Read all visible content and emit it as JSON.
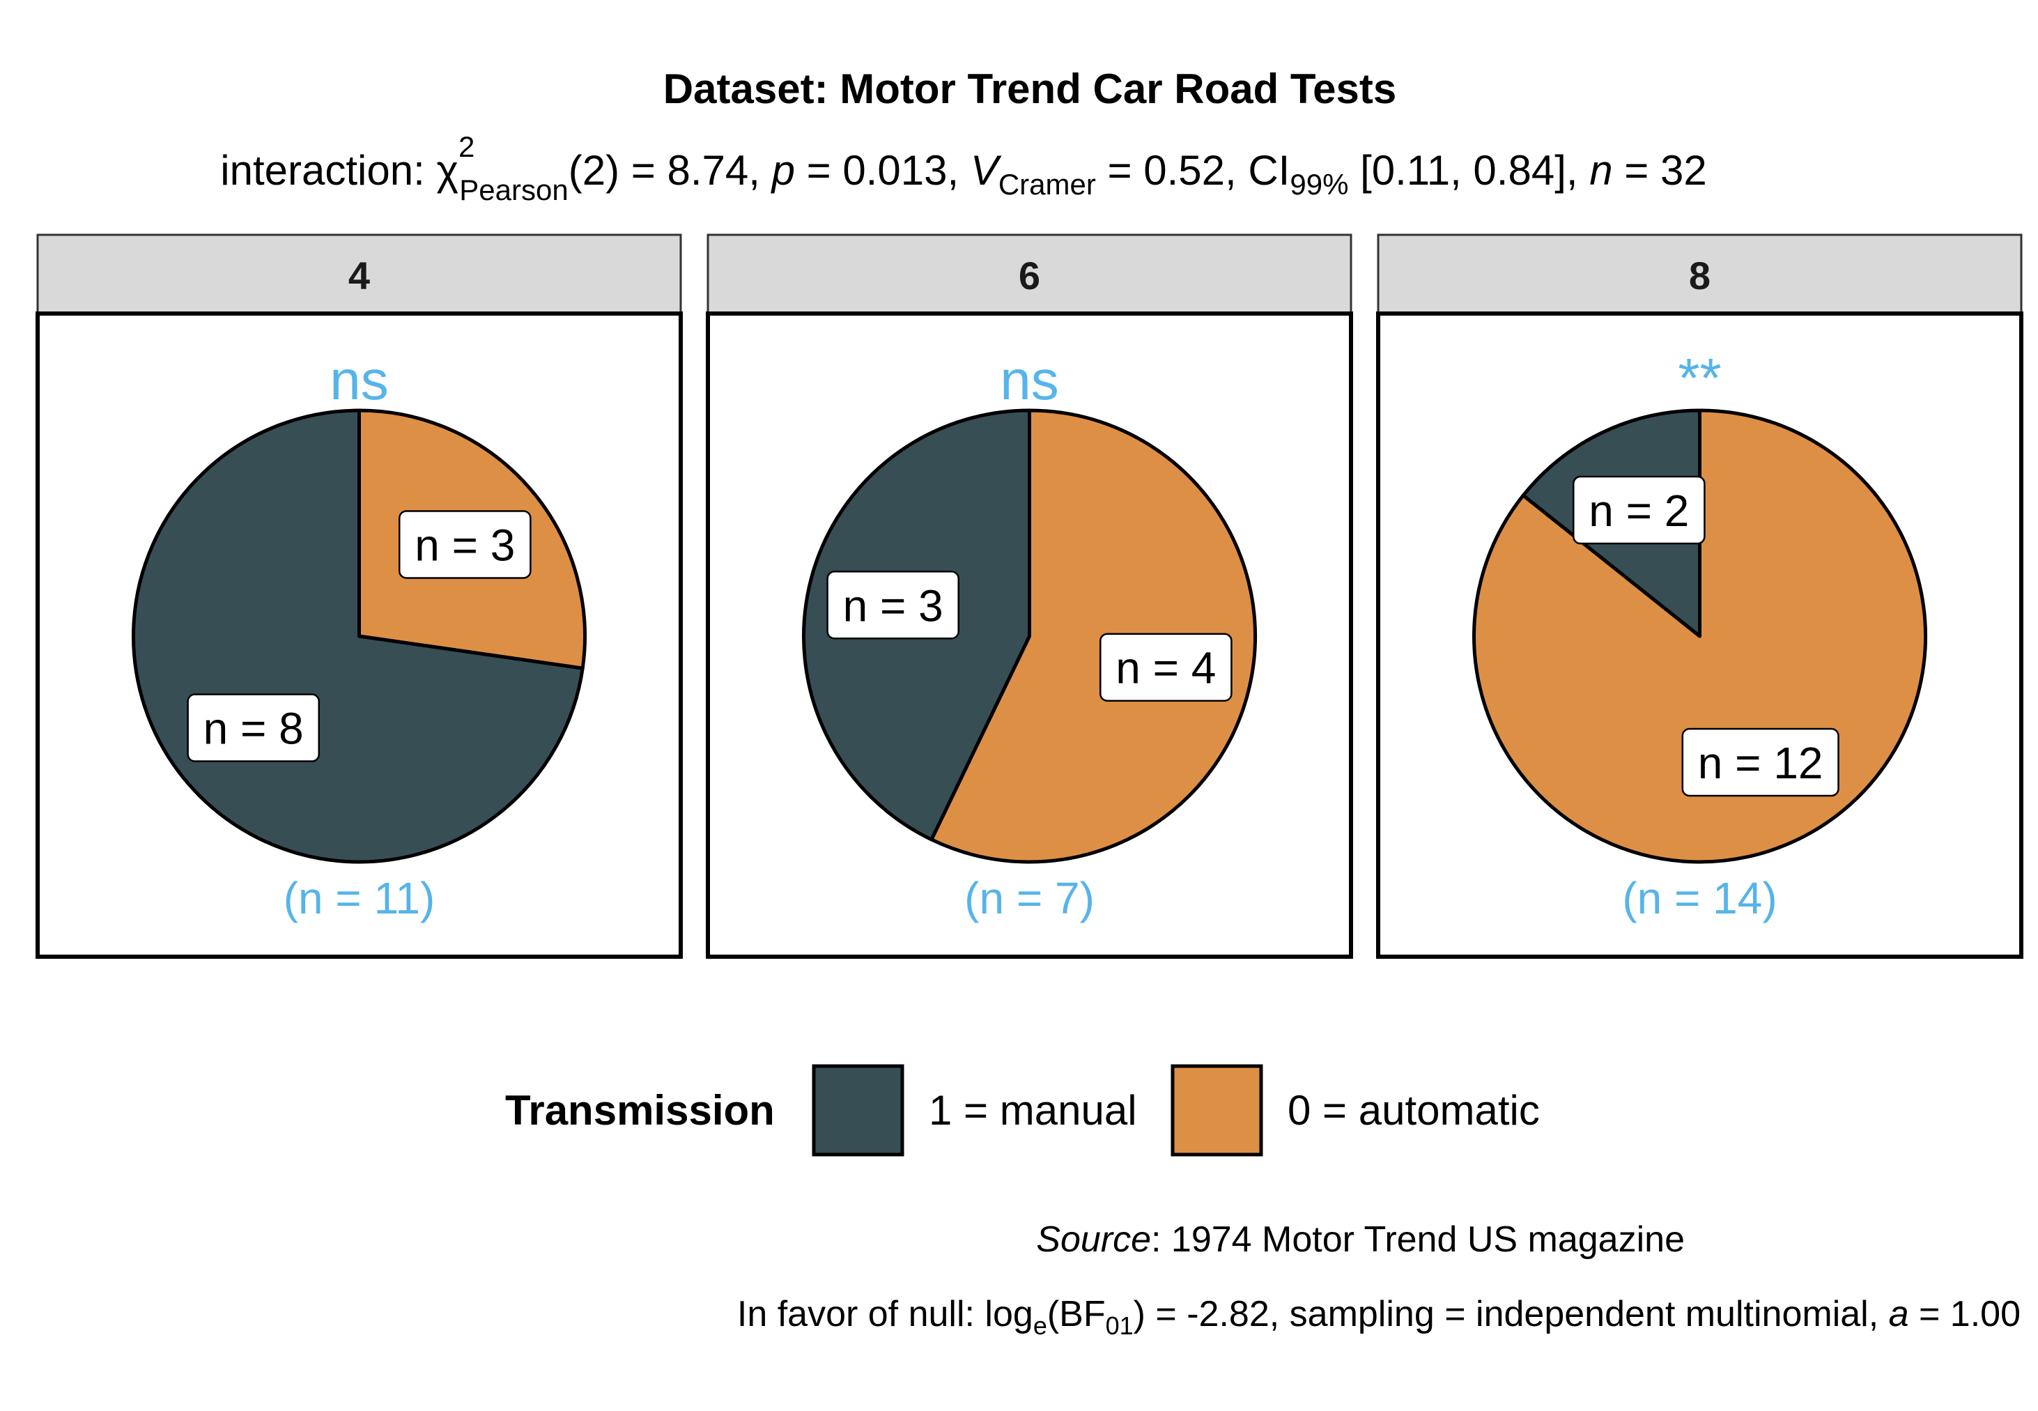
{
  "colors": {
    "manual": "#384E55",
    "automatic": "#DE8F46",
    "annotation": "#56B4E9",
    "strip_bg": "#D9D9D9"
  },
  "chart_data": {
    "type": "pie",
    "title": "Dataset: Motor Trend Car Road Tests",
    "subtitle": {
      "prefix": "interaction: ",
      "chi": "χ",
      "chi_sup": "2",
      "chi_sub": "Pearson",
      "df": "(2) = 8.74, ",
      "p_sym": "p",
      "p_val": " = 0.013, ",
      "v_sym": "V",
      "v_sub": "Cramer",
      "v_val": " = 0.52, CI",
      "ci_sub": "99%",
      "ci_val": " [0.11, 0.84], ",
      "n_sym": "n",
      "n_val": " = 32"
    },
    "legend": {
      "title": "Transmission",
      "items": [
        {
          "label": "1 = manual",
          "color": "#384E55"
        },
        {
          "label": "0 = automatic",
          "color": "#DE8F46"
        }
      ]
    },
    "panels": [
      {
        "facet": "4",
        "significance": "ns",
        "total_label": "(n = 11)",
        "slices": [
          {
            "category": "0 = automatic",
            "value": 3,
            "label": "n = 3",
            "color": "#DE8F46"
          },
          {
            "category": "1 = manual",
            "value": 8,
            "label": "n = 8",
            "color": "#384E55"
          }
        ]
      },
      {
        "facet": "6",
        "significance": "ns",
        "total_label": "(n = 7)",
        "slices": [
          {
            "category": "0 = automatic",
            "value": 4,
            "label": "n = 4",
            "color": "#DE8F46"
          },
          {
            "category": "1 = manual",
            "value": 3,
            "label": "n = 3",
            "color": "#384E55"
          }
        ]
      },
      {
        "facet": "8",
        "significance": "**",
        "total_label": "(n = 14)",
        "slices": [
          {
            "category": "0 = automatic",
            "value": 12,
            "label": "n = 12",
            "color": "#DE8F46"
          },
          {
            "category": "1 = manual",
            "value": 2,
            "label": "n = 2",
            "color": "#384E55"
          }
        ]
      }
    ],
    "caption": {
      "source_word": "Source",
      "source_text": ": 1974 Motor Trend US magazine",
      "bf_prefix": "In favor of null: log",
      "bf_e": "e",
      "bf_open": "(BF",
      "bf_sub": "01",
      "bf_text": ") = -2.82, sampling = independent multinomial, ",
      "bf_a": "a",
      "bf_a_val": " = 1.00"
    }
  }
}
